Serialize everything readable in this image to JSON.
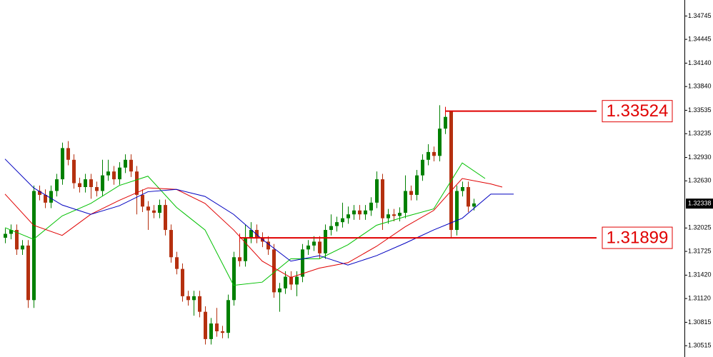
{
  "chart_data": {
    "type": "candlestick",
    "ylim": [
      1.3037,
      1.3495
    ],
    "yticks": [
      1.34745,
      1.34445,
      {
        "value": 1.3414,
        "label": "1.34140"
      },
      {
        "value": 1.3384,
        "label": "1.33840"
      },
      1.33535,
      1.33235,
      {
        "value": 1.3293,
        "label": "1.32930"
      },
      {
        "value": 1.3263,
        "label": "1.32630"
      },
      1.32025,
      1.31725,
      {
        "value": 1.3142,
        "label": "1.31420"
      },
      {
        "value": 1.3112,
        "label": "1.31120"
      },
      1.30815,
      1.30515
    ],
    "up_color": "#008000",
    "down_color": "#b5300f",
    "open": [
      1.319,
      1.3195,
      1.32,
      1.3175,
      1.318,
      1.311,
      1.325,
      1.3245,
      1.3235,
      1.325,
      1.3265,
      1.3305,
      1.329,
      1.326,
      1.3255,
      1.3265,
      1.3255,
      1.325,
      1.327,
      1.3275,
      1.3265,
      1.328,
      1.329,
      1.3275,
      1.3245,
      1.323,
      1.3225,
      1.3222,
      1.3232,
      1.32,
      1.3165,
      1.315,
      1.3115,
      1.311,
      1.3115,
      1.3095,
      1.306,
      1.308,
      1.307,
      1.3068,
      1.311,
      1.3165,
      1.316,
      1.319,
      1.32,
      1.319,
      1.3185,
      1.3175,
      1.312,
      1.3125,
      1.314,
      1.313,
      1.314,
      1.3175,
      1.318,
      1.3185,
      1.317,
      1.32,
      1.3205,
      1.321,
      1.3215,
      1.322,
      1.3225,
      1.322,
      1.3225,
      1.3235,
      1.3265,
      1.3215,
      1.322,
      1.3218,
      1.3222,
      1.325,
      1.3245,
      1.327,
      1.329,
      1.33,
      1.3295,
      1.333,
      1.3352,
      1.32,
      1.325,
      1.3255,
      1.323
    ],
    "high": [
      1.3202,
      1.3207,
      1.3207,
      1.3187,
      1.3187,
      1.3257,
      1.3257,
      1.3252,
      1.3257,
      1.3272,
      1.3312,
      1.3314,
      1.3297,
      1.3267,
      1.3272,
      1.3272,
      1.3262,
      1.329,
      1.329,
      1.3282,
      1.3287,
      1.3297,
      1.3297,
      1.3282,
      1.3252,
      1.3237,
      1.3232,
      1.3239,
      1.3239,
      1.3207,
      1.3172,
      1.3157,
      1.3122,
      1.3122,
      1.3122,
      1.3102,
      1.3087,
      1.31,
      1.3077,
      1.3117,
      1.3172,
      1.319,
      1.3207,
      1.321,
      1.3207,
      1.3197,
      1.3192,
      1.3182,
      1.3132,
      1.3147,
      1.3147,
      1.3147,
      1.3182,
      1.3187,
      1.3192,
      1.3192,
      1.3207,
      1.322,
      1.3217,
      1.3235,
      1.323,
      1.3232,
      1.3232,
      1.3232,
      1.3242,
      1.3275,
      1.3272,
      1.3227,
      1.3227,
      1.3229,
      1.327,
      1.3257,
      1.3277,
      1.3297,
      1.331,
      1.3307,
      1.336,
      1.3352,
      1.3352,
      1.3257,
      1.3262,
      1.3262,
      1.324
    ],
    "low": [
      1.3183,
      1.3188,
      1.3168,
      1.3168,
      1.31,
      1.31,
      1.3238,
      1.3228,
      1.3228,
      1.3243,
      1.3258,
      1.3283,
      1.3253,
      1.3248,
      1.3248,
      1.324,
      1.3243,
      1.3243,
      1.3263,
      1.3258,
      1.3258,
      1.3273,
      1.3268,
      1.322,
      1.3223,
      1.32,
      1.3215,
      1.3215,
      1.3193,
      1.3158,
      1.3143,
      1.3108,
      1.3103,
      1.309,
      1.3088,
      1.3053,
      1.3053,
      1.3063,
      1.3061,
      1.3061,
      1.3103,
      1.3153,
      1.3153,
      1.3183,
      1.3183,
      1.3178,
      1.3168,
      1.3113,
      1.3095,
      1.3118,
      1.3123,
      1.3115,
      1.3133,
      1.3168,
      1.3173,
      1.3163,
      1.3163,
      1.3193,
      1.3198,
      1.3203,
      1.3208,
      1.3213,
      1.3213,
      1.3213,
      1.3218,
      1.3228,
      1.32,
      1.3208,
      1.3211,
      1.3211,
      1.3215,
      1.3238,
      1.3238,
      1.3263,
      1.3283,
      1.3288,
      1.3288,
      1.3323,
      1.319,
      1.3193,
      1.3243,
      1.3223,
      1.3225
    ],
    "close": [
      1.3195,
      1.32,
      1.3175,
      1.318,
      1.311,
      1.325,
      1.3245,
      1.3235,
      1.325,
      1.3265,
      1.3305,
      1.329,
      1.326,
      1.3255,
      1.3265,
      1.3255,
      1.325,
      1.327,
      1.3275,
      1.3265,
      1.328,
      1.329,
      1.3275,
      1.3245,
      1.323,
      1.3225,
      1.3222,
      1.3232,
      1.32,
      1.3165,
      1.315,
      1.3115,
      1.311,
      1.3115,
      1.3095,
      1.306,
      1.308,
      1.307,
      1.3068,
      1.311,
      1.3165,
      1.316,
      1.319,
      1.32,
      1.319,
      1.3185,
      1.3175,
      1.312,
      1.3125,
      1.314,
      1.313,
      1.314,
      1.3175,
      1.318,
      1.3185,
      1.317,
      1.32,
      1.3205,
      1.321,
      1.3215,
      1.322,
      1.3225,
      1.322,
      1.3225,
      1.3235,
      1.3265,
      1.3215,
      1.322,
      1.3218,
      1.3222,
      1.325,
      1.3245,
      1.327,
      1.329,
      1.33,
      1.3295,
      1.333,
      1.3345,
      1.32,
      1.325,
      1.3255,
      1.323,
      1.3234
    ],
    "series": [
      {
        "color": "#00c000",
        "x": [
          0,
          5,
          10,
          15,
          20,
          25,
          30,
          35,
          40,
          45,
          50,
          55,
          60,
          65,
          70,
          75,
          80,
          84
        ],
        "values": [
          1.3203,
          1.3188,
          1.3218,
          1.3234,
          1.3257,
          1.3269,
          1.3229,
          1.32,
          1.3129,
          1.3133,
          1.3163,
          1.3163,
          1.3181,
          1.3206,
          1.3217,
          1.3227,
          1.3286,
          1.3266
        ]
      },
      {
        "color": "#e00000",
        "x": [
          0,
          5,
          10,
          15,
          20,
          25,
          30,
          35,
          40,
          45,
          50,
          55,
          60,
          65,
          70,
          75,
          80,
          85,
          87
        ],
        "values": [
          1.3246,
          1.3206,
          1.3193,
          1.322,
          1.3238,
          1.3254,
          1.3252,
          1.3234,
          1.32,
          1.316,
          1.3139,
          1.3151,
          1.3158,
          1.3179,
          1.3204,
          1.3225,
          1.3266,
          1.3259,
          1.3255
        ]
      },
      {
        "color": "#0000c0",
        "x": [
          0,
          5,
          10,
          15,
          20,
          25,
          30,
          35,
          40,
          45,
          50,
          55,
          60,
          65,
          70,
          75,
          80,
          85,
          89
        ],
        "values": [
          1.3291,
          1.3254,
          1.3232,
          1.322,
          1.3231,
          1.3249,
          1.3252,
          1.3243,
          1.322,
          1.3188,
          1.316,
          1.3167,
          1.3155,
          1.3167,
          1.3183,
          1.32,
          1.3215,
          1.3246,
          1.3246
        ]
      }
    ],
    "annotations": [
      1.33524,
      1.31899
    ],
    "last_price": 1.32338
  }
}
